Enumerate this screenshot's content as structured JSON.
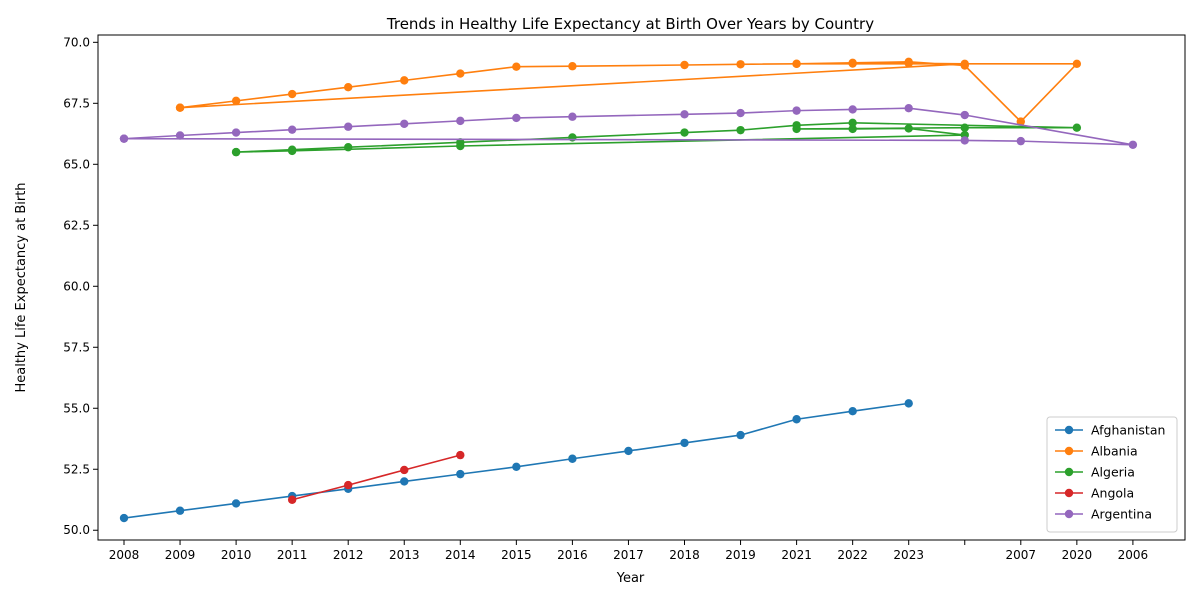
{
  "chart_data": {
    "type": "line",
    "title": "Trends in Healthy Life Expectancy at Birth Over Years by Country",
    "xlabel": "Year",
    "ylabel": "Healthy Life Expectancy at Birth",
    "categories": [
      "2008",
      "2009",
      "2010",
      "2011",
      "2012",
      "2013",
      "2014",
      "2015",
      "2016",
      "2017",
      "2018",
      "2019",
      "2021",
      "2022",
      "2023",
      "",
      "2007",
      "2020",
      "2006"
    ],
    "ylim": [
      49.6,
      70.3
    ],
    "yticks": [
      "50.0",
      "52.5",
      "55.0",
      "57.5",
      "60.0",
      "62.5",
      "65.0",
      "67.5",
      "70.0"
    ],
    "grid": false,
    "legend_position": "bottom-right",
    "series": [
      {
        "name": "Afghanistan",
        "color": "#1f77b4",
        "points": [
          [
            "2008",
            50.5
          ],
          [
            "2009",
            50.8
          ],
          [
            "2010",
            51.1
          ],
          [
            "2011",
            51.4
          ],
          [
            "2012",
            51.7
          ],
          [
            "2013",
            52.0
          ],
          [
            "2014",
            52.3
          ],
          [
            "2015",
            52.6
          ],
          [
            "2016",
            52.93
          ],
          [
            "2017",
            53.25
          ],
          [
            "2018",
            53.58
          ],
          [
            "2019",
            53.9
          ],
          [
            "2021",
            54.55
          ],
          [
            "2022",
            54.88
          ],
          [
            "2023",
            55.2
          ]
        ]
      },
      {
        "name": "Albania",
        "color": "#ff7f0e",
        "points": [
          [
            "2009",
            67.32
          ],
          [
            "2010",
            67.6
          ],
          [
            "2011",
            67.88
          ],
          [
            "2012",
            68.16
          ],
          [
            "2013",
            68.44
          ],
          [
            "2014",
            68.72
          ],
          [
            "2015",
            69.0
          ],
          [
            "2016",
            69.02
          ],
          [
            "2018",
            69.07
          ],
          [
            "2019",
            69.1
          ],
          [
            "2021",
            69.12
          ],
          [
            "2022",
            69.16
          ],
          [
            "2023",
            69.2
          ],
          [
            "",
            69.05
          ],
          [
            "2007",
            66.75
          ],
          [
            "2020",
            69.12
          ],
          [
            "2021",
            69.12
          ],
          [
            "2022",
            69.13
          ],
          [
            "2023",
            69.14
          ],
          [
            "",
            69.12
          ],
          [
            "2009",
            67.32
          ]
        ]
      },
      {
        "name": "Algeria",
        "color": "#2ca02c",
        "points": [
          [
            "2010",
            65.5
          ],
          [
            "2011",
            65.6
          ],
          [
            "2012",
            65.7
          ],
          [
            "2014",
            65.9
          ],
          [
            "2016",
            66.1
          ],
          [
            "2018",
            66.3
          ],
          [
            "2019",
            66.4
          ],
          [
            "2021",
            66.6
          ],
          [
            "2022",
            66.7
          ],
          [
            "2020",
            66.5
          ],
          [
            "",
            66.5
          ],
          [
            "2021",
            66.45
          ],
          [
            "2022",
            66.45
          ],
          [
            "2023",
            66.47
          ],
          [
            "",
            66.2
          ],
          [
            "2014",
            65.75
          ],
          [
            "2011",
            65.55
          ],
          [
            "2010",
            65.5
          ]
        ]
      },
      {
        "name": "Angola",
        "color": "#d62728",
        "points": [
          [
            "2011",
            51.25
          ],
          [
            "2012",
            51.85
          ],
          [
            "2013",
            52.47
          ],
          [
            "2014",
            53.08
          ]
        ]
      },
      {
        "name": "Argentina",
        "color": "#9467bd",
        "points": [
          [
            "2008",
            66.05
          ],
          [
            "2009",
            66.18
          ],
          [
            "2010",
            66.3
          ],
          [
            "2011",
            66.42
          ],
          [
            "2012",
            66.54
          ],
          [
            "2013",
            66.66
          ],
          [
            "2014",
            66.78
          ],
          [
            "2015",
            66.9
          ],
          [
            "2016",
            66.95
          ],
          [
            "2018",
            67.05
          ],
          [
            "2019",
            67.1
          ],
          [
            "2021",
            67.2
          ],
          [
            "2022",
            67.25
          ],
          [
            "2023",
            67.3
          ],
          [
            "",
            67.02
          ],
          [
            "2006",
            65.8
          ],
          [
            "2007",
            65.95
          ],
          [
            "",
            65.98
          ],
          [
            "2008",
            66.05
          ]
        ]
      }
    ]
  }
}
